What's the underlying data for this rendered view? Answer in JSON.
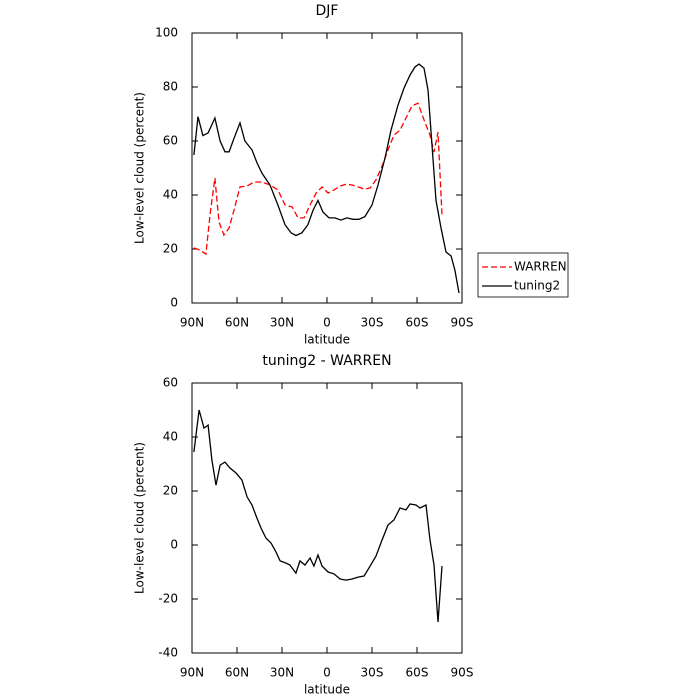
{
  "chart_data": [
    {
      "type": "line",
      "title": "DJF",
      "xlabel": "latitude",
      "ylabel": "Low-level cloud (percent)",
      "xlim": [
        90,
        -90
      ],
      "xticks": [
        {
          "value": 90,
          "label": "90N"
        },
        {
          "value": 60,
          "label": "60N"
        },
        {
          "value": 30,
          "label": "30N"
        },
        0,
        {
          "value": -30,
          "label": "30S"
        },
        {
          "value": -60,
          "label": "60S"
        },
        {
          "value": -90,
          "label": "90S"
        }
      ],
      "ylim": [
        0,
        100
      ],
      "yticks": [
        0,
        20,
        40,
        60,
        80,
        100
      ],
      "legend": "right",
      "series": [
        {
          "name": "WARREN",
          "color": "#ff0000",
          "linestyle": "dashed",
          "x": [
            88.7,
            84.7,
            80.7,
            78,
            74.7,
            72,
            68.7,
            65.3,
            62,
            58,
            53.3,
            48.7,
            43.3,
            38,
            32.7,
            28,
            23.3,
            19.3,
            15.3,
            11.3,
            7.3,
            3.3,
            -0.7,
            -4.7,
            -8.7,
            -12.7,
            -16.7,
            -20.7,
            -24.7,
            -28.7,
            -32.7,
            -36.7,
            -40.7,
            -44.7,
            -48.7,
            -52.7,
            -56.7,
            -60.7,
            -64.7,
            -68.7,
            -71.3,
            -74,
            -76.7
          ],
          "values": [
            20.4,
            19.6,
            18.1,
            32.6,
            46.3,
            30,
            25.2,
            27.8,
            34.4,
            43,
            43.3,
            44.8,
            44.8,
            43.7,
            41.9,
            36.3,
            35.6,
            31.5,
            31.5,
            36.3,
            40.7,
            43,
            40.7,
            41.9,
            43.3,
            44,
            43.7,
            43,
            42.2,
            42.6,
            45.6,
            50.7,
            56.7,
            62.2,
            64,
            68.5,
            73,
            74,
            67.8,
            62.2,
            55.9,
            63.3,
            32.6
          ]
        },
        {
          "name": "tuning2",
          "color": "#000000",
          "linestyle": "solid",
          "x": [
            88.7,
            86,
            82.7,
            79.3,
            74.7,
            71.3,
            68,
            65.3,
            62,
            58,
            54.7,
            50,
            46.7,
            43.3,
            38,
            32.7,
            28,
            24,
            20.7,
            16.7,
            12.7,
            9.3,
            6,
            2.7,
            -1.3,
            -5.3,
            -9.3,
            -13.3,
            -17.3,
            -21.3,
            -25.3,
            -30,
            -34,
            -38.7,
            -42.7,
            -47.3,
            -51.3,
            -55.3,
            -58.7,
            -61.3,
            -64.7,
            -67.3,
            -70,
            -72.7,
            -76,
            -79.3,
            -82.7,
            -85.3,
            -88
          ],
          "values": [
            54.8,
            69,
            62,
            63,
            68.5,
            60,
            56,
            56,
            61,
            66.7,
            60,
            56.7,
            52,
            48,
            43.7,
            36.3,
            29,
            26,
            25,
            26,
            29,
            34.4,
            38,
            33.7,
            31.5,
            31.5,
            30.7,
            31.5,
            31,
            31,
            32,
            36.3,
            43.7,
            53.7,
            64,
            73.3,
            79.6,
            84.4,
            87.4,
            88.5,
            87,
            78.9,
            58.5,
            38,
            27.8,
            18.9,
            17.4,
            12.2,
            3.7
          ]
        }
      ]
    },
    {
      "type": "line",
      "title": "tuning2 - WARREN",
      "xlabel": "latitude",
      "ylabel": "Low-level cloud (percent)",
      "xlim": [
        90,
        -90
      ],
      "xticks": [
        {
          "value": 90,
          "label": "90N"
        },
        {
          "value": 60,
          "label": "60N"
        },
        {
          "value": 30,
          "label": "30N"
        },
        0,
        {
          "value": -30,
          "label": "30S"
        },
        {
          "value": -60,
          "label": "60S"
        },
        {
          "value": -90,
          "label": "90S"
        }
      ],
      "ylim": [
        -40,
        60
      ],
      "yticks": [
        -40,
        -20,
        0,
        20,
        40,
        60
      ],
      "series": [
        {
          "color": "#000000",
          "linestyle": "solid",
          "x": [
            88.7,
            85.3,
            82,
            79.3,
            76.7,
            74,
            71.3,
            68,
            64.7,
            60.7,
            56.7,
            53.3,
            50,
            46.7,
            44,
            40.7,
            37.3,
            34,
            31.3,
            27.3,
            24.7,
            20.7,
            18,
            14.7,
            11.3,
            8.7,
            6,
            3.3,
            -0.7,
            -4.7,
            -8.7,
            -12.7,
            -16.7,
            -20.7,
            -24.7,
            -28.7,
            -32.7,
            -36.7,
            -40.7,
            -44.7,
            -48.7,
            -52.7,
            -55.3,
            -59.3,
            -62,
            -66,
            -68.7,
            -71.3,
            -74,
            -76.7
          ],
          "values": [
            34.4,
            50,
            43.3,
            44.4,
            31.5,
            22.2,
            29.6,
            30.7,
            28.5,
            26.7,
            24.1,
            17.8,
            14.8,
            10,
            6.3,
            2.6,
            0.7,
            -2.6,
            -5.9,
            -6.7,
            -7.4,
            -10.4,
            -5.9,
            -7.4,
            -4.8,
            -7.8,
            -3.7,
            -7.8,
            -10,
            -10.7,
            -12.6,
            -13,
            -12.6,
            -11.9,
            -11.5,
            -7.8,
            -4.1,
            1.9,
            7.4,
            9.3,
            13.7,
            13,
            15.2,
            14.8,
            13.7,
            14.8,
            1.9,
            -7.4,
            -28.5,
            -7.8
          ]
        }
      ]
    }
  ]
}
